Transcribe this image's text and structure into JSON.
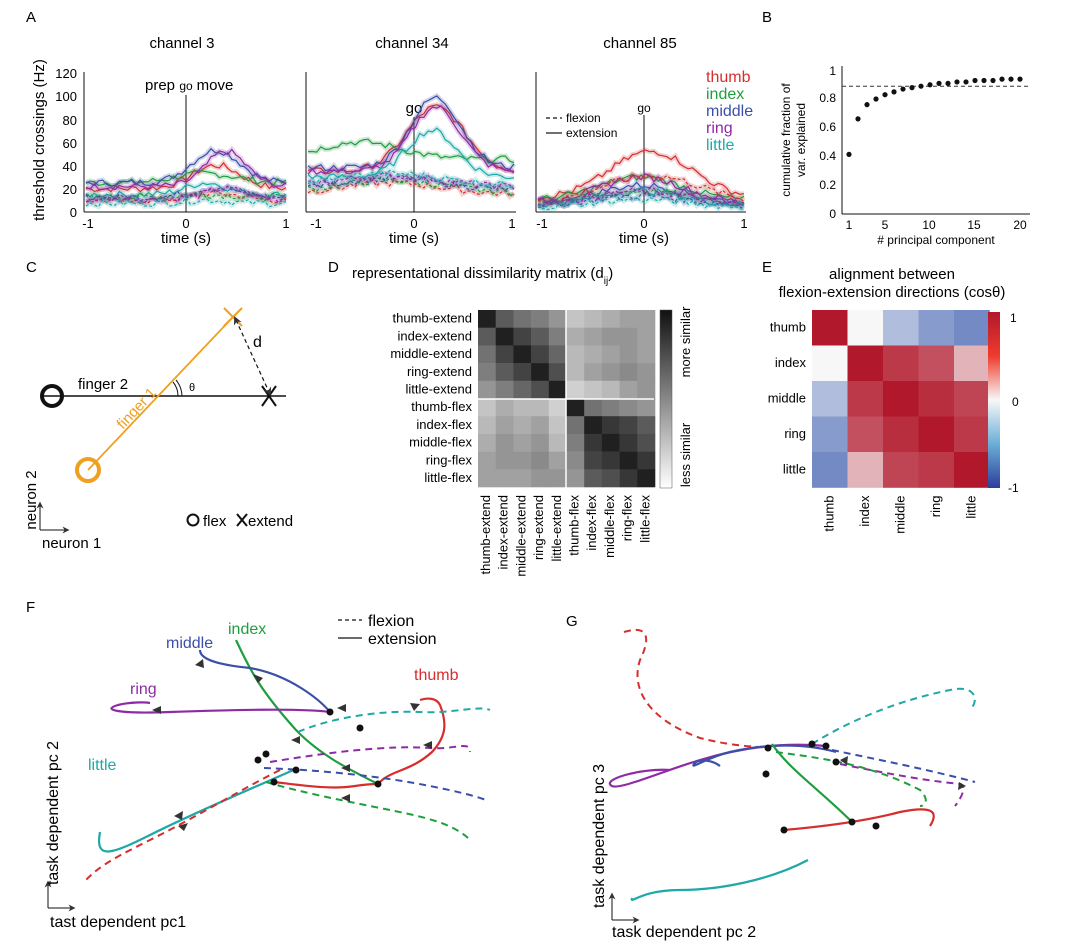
{
  "panel_letters": [
    "A",
    "B",
    "C",
    "D",
    "E",
    "F",
    "G"
  ],
  "colors": {
    "thumb": "#d62d2d",
    "index": "#1f9e3e",
    "middle": "#3b4fa8",
    "ring": "#8e2aa6",
    "little": "#1fa8a8",
    "orange": "#f0a020",
    "ink": "#111111"
  },
  "panelA": {
    "ylabel": "threshold crossings (Hz)",
    "xlabel": "time (s)",
    "go_label": "go",
    "prep_label": "prep",
    "move_label": "move",
    "legend_flexion": "flexion",
    "legend_extension": "extension",
    "finger_legend": [
      "thumb",
      "index",
      "middle",
      "ring",
      "little"
    ],
    "subplots": [
      {
        "title": "channel 3",
        "yticks": [
          "0",
          "20",
          "40",
          "60",
          "80",
          "100",
          "120"
        ],
        "xticks": [
          "-1",
          "0",
          "1"
        ]
      },
      {
        "title": "channel 34",
        "yticks": [],
        "xticks": [
          "-1",
          "0",
          "1"
        ]
      },
      {
        "title": "channel 85",
        "yticks": [],
        "xticks": [
          "-1",
          "0",
          "1"
        ]
      }
    ]
  },
  "panelB": {
    "ylabel_line1": "cumulative fraction of",
    "ylabel_line2": "var. explained",
    "xlabel": "# principal component",
    "yticks": [
      "0",
      "0.2",
      "0.4",
      "0.6",
      "0.8",
      "1"
    ],
    "xticks": [
      "1",
      "5",
      "10",
      "15",
      "20"
    ]
  },
  "panelC": {
    "finger2_label": "finger 2",
    "finger1_label": "finger 1",
    "d_label": "d",
    "theta_label": "θ",
    "axis_y": "neuron 2",
    "axis_x": "neuron 1",
    "legend_flex": "flex",
    "legend_extend": "extend"
  },
  "panelD": {
    "title_main": "representational dissimilarity matrix (d",
    "title_sub": "ij",
    "title_end": ")",
    "row_labels": [
      "thumb-extend",
      "index-extend",
      "middle-extend",
      "ring-extend",
      "little-extend",
      "thumb-flex",
      "index-flex",
      "middle-flex",
      "ring-flex",
      "little-flex"
    ],
    "colorbar_top": "more similar",
    "colorbar_bottom": "less similar"
  },
  "panelE": {
    "title_line1": "alignment between",
    "title_line2": "flexion-extension directions (cosθ)",
    "labels": [
      "thumb",
      "index",
      "middle",
      "ring",
      "little"
    ],
    "cbar_ticks": [
      "1",
      "0",
      "-1"
    ]
  },
  "panelF": {
    "labels": {
      "index": "index",
      "middle": "middle",
      "ring": "ring",
      "thumb": "thumb",
      "little": "little"
    },
    "legend_flexion": "flexion",
    "legend_extension": "extension",
    "axis_y": "task dependent pc 2",
    "axis_x": "tast dependent pc1"
  },
  "panelG": {
    "axis_y": "task dependent pc 3",
    "axis_x": "task dependent pc 2"
  },
  "chart_data": [
    {
      "type": "scatter",
      "x": [
        1,
        2,
        3,
        4,
        5,
        6,
        7,
        8,
        9,
        10,
        11,
        12,
        13,
        14,
        15,
        16,
        17,
        18,
        19,
        20
      ],
      "y": [
        0.42,
        0.67,
        0.77,
        0.81,
        0.84,
        0.86,
        0.88,
        0.89,
        0.9,
        0.91,
        0.92,
        0.92,
        0.93,
        0.93,
        0.94,
        0.94,
        0.94,
        0.95,
        0.95,
        0.95
      ],
      "reference_line": 0.9,
      "xlim": [
        1,
        20
      ],
      "ylim": [
        0,
        1
      ],
      "xlabel": "# principal component",
      "ylabel": "cumulative fraction of var. explained"
    },
    {
      "type": "heatmap",
      "labels": [
        "thumb",
        "index",
        "middle",
        "ring",
        "little"
      ],
      "values": [
        [
          1.0,
          0.0,
          -0.35,
          -0.55,
          -0.65
        ],
        [
          0.0,
          1.0,
          0.85,
          0.75,
          0.3
        ],
        [
          -0.35,
          0.85,
          1.0,
          0.9,
          0.8
        ],
        [
          -0.55,
          0.75,
          0.9,
          1.0,
          0.85
        ],
        [
          -0.65,
          0.3,
          0.8,
          0.85,
          1.0
        ]
      ],
      "range": [
        -1,
        1
      ]
    },
    {
      "type": "heatmap",
      "labels": [
        "thumb-extend",
        "index-extend",
        "middle-extend",
        "ring-extend",
        "little-extend",
        "thumb-flex",
        "index-flex",
        "middle-flex",
        "ring-flex",
        "little-flex"
      ],
      "values": [
        [
          0.05,
          0.3,
          0.4,
          0.45,
          0.55,
          0.75,
          0.7,
          0.65,
          0.6,
          0.6
        ],
        [
          0.3,
          0.05,
          0.2,
          0.3,
          0.45,
          0.65,
          0.6,
          0.55,
          0.55,
          0.6
        ],
        [
          0.4,
          0.2,
          0.05,
          0.2,
          0.35,
          0.7,
          0.65,
          0.6,
          0.55,
          0.6
        ],
        [
          0.45,
          0.3,
          0.2,
          0.05,
          0.25,
          0.7,
          0.6,
          0.55,
          0.5,
          0.55
        ],
        [
          0.55,
          0.45,
          0.35,
          0.25,
          0.05,
          0.8,
          0.75,
          0.7,
          0.6,
          0.55
        ],
        [
          0.75,
          0.65,
          0.7,
          0.7,
          0.8,
          0.05,
          0.4,
          0.45,
          0.5,
          0.55
        ],
        [
          0.7,
          0.6,
          0.65,
          0.6,
          0.75,
          0.4,
          0.05,
          0.15,
          0.2,
          0.3
        ],
        [
          0.65,
          0.55,
          0.6,
          0.55,
          0.7,
          0.45,
          0.15,
          0.05,
          0.15,
          0.25
        ],
        [
          0.6,
          0.55,
          0.55,
          0.5,
          0.6,
          0.5,
          0.2,
          0.15,
          0.05,
          0.15
        ],
        [
          0.6,
          0.6,
          0.6,
          0.55,
          0.55,
          0.55,
          0.3,
          0.25,
          0.15,
          0.05
        ]
      ]
    }
  ]
}
